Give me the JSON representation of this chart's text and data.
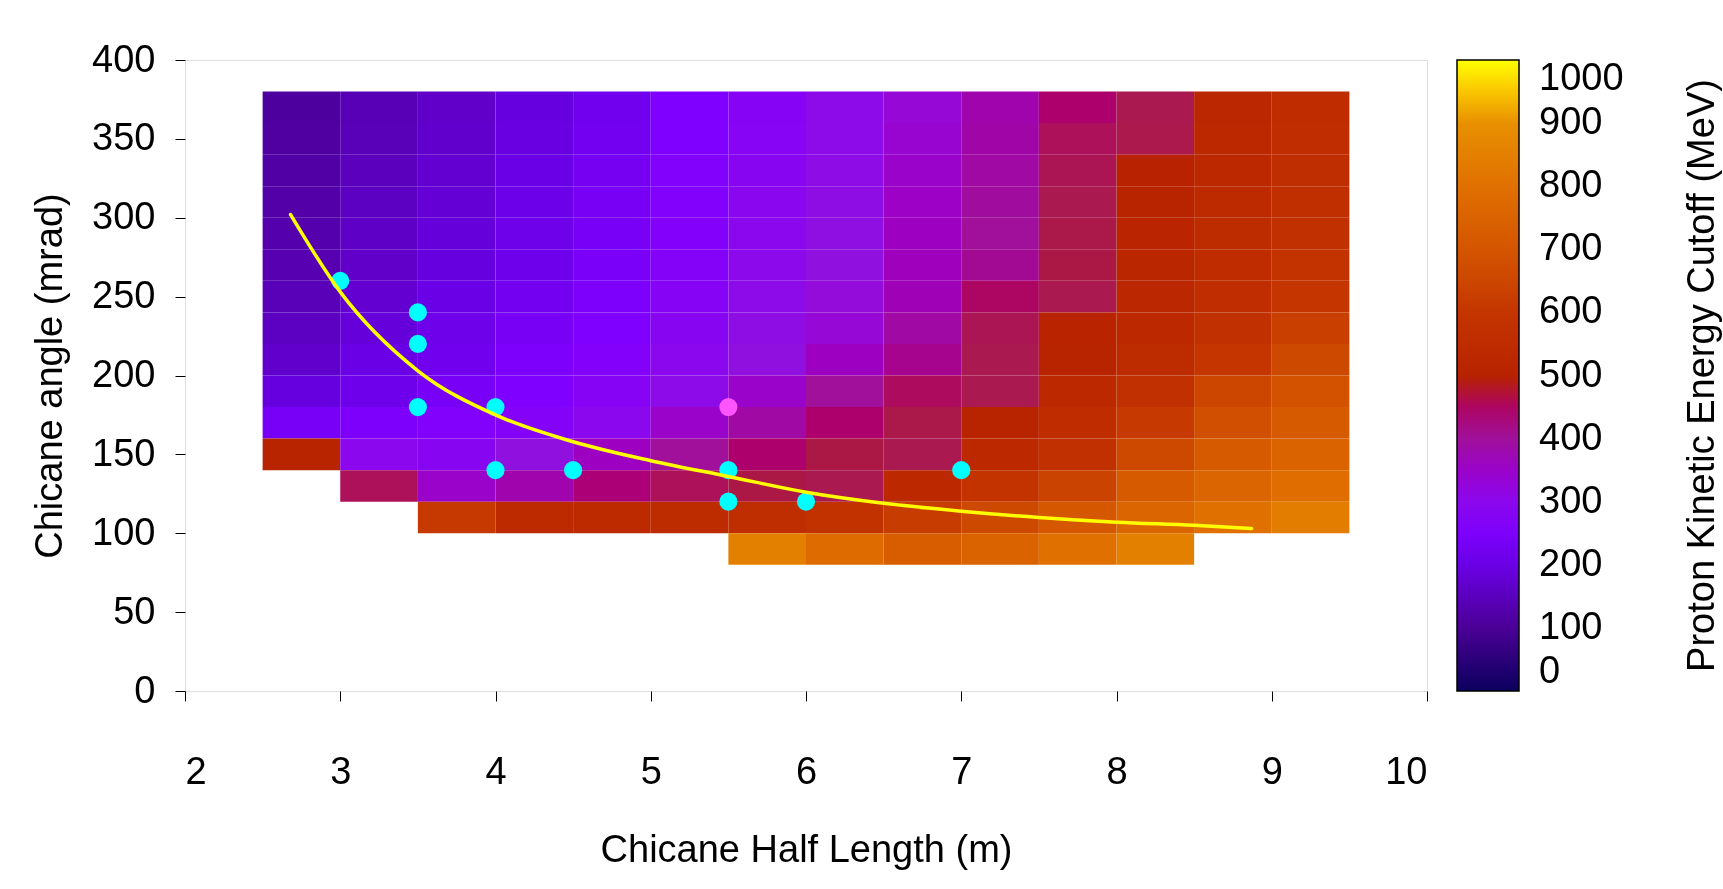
{
  "chart_data": {
    "type": "heatmap",
    "xlabel": "Chicane Half Length (m)",
    "ylabel": "Chicane angle (mrad)",
    "clabel": "Proton Kinetic Energy Cutoff (MeV)",
    "x": [
      2.75,
      3.25,
      3.75,
      4.25,
      4.75,
      5.25,
      5.75,
      6.25,
      6.75,
      7.25,
      7.75,
      8.25,
      8.75,
      9.25
    ],
    "y": [
      370,
      350,
      330,
      310,
      290,
      270,
      250,
      230,
      210,
      190,
      170,
      150,
      130,
      110,
      90
    ],
    "cells": [
      [
        110,
        140,
        165,
        190,
        220,
        260,
        280,
        310,
        340,
        380,
        440,
        470,
        525,
        550
      ],
      [
        115,
        145,
        170,
        195,
        225,
        260,
        285,
        310,
        345,
        385,
        460,
        473,
        530,
        555
      ],
      [
        120,
        150,
        175,
        200,
        230,
        265,
        290,
        315,
        350,
        390,
        465,
        500,
        535,
        560
      ],
      [
        125,
        155,
        180,
        205,
        235,
        265,
        295,
        320,
        355,
        395,
        470,
        510,
        540,
        565
      ],
      [
        130,
        160,
        185,
        210,
        240,
        270,
        300,
        325,
        360,
        400,
        475,
        515,
        545,
        570
      ],
      [
        135,
        165,
        190,
        215,
        245,
        275,
        305,
        330,
        365,
        405,
        480,
        520,
        550,
        590
      ],
      [
        145,
        175,
        200,
        225,
        250,
        280,
        310,
        335,
        370,
        450,
        470,
        525,
        555,
        600
      ],
      [
        155,
        185,
        210,
        235,
        260,
        290,
        320,
        340,
        390,
        465,
        505,
        530,
        570,
        630
      ],
      [
        170,
        200,
        220,
        250,
        270,
        300,
        330,
        360,
        410,
        470,
        510,
        545,
        600,
        660
      ],
      [
        190,
        215,
        240,
        260,
        280,
        310,
        350,
        400,
        455,
        470,
        530,
        570,
        650,
        690
      ],
      [
        240,
        250,
        265,
        275,
        300,
        350,
        390,
        440,
        475,
        510,
        550,
        610,
        680,
        720
      ],
      [
        510,
        300,
        290,
        330,
        360,
        400,
        440,
        480,
        470,
        530,
        570,
        660,
        720,
        750
      ],
      [
        null,
        460,
        350,
        380,
        430,
        460,
        480,
        470,
        530,
        590,
        640,
        720,
        760,
        790
      ],
      [
        null,
        null,
        610,
        540,
        540,
        545,
        560,
        580,
        620,
        660,
        710,
        760,
        800,
        840
      ],
      [
        null,
        null,
        null,
        null,
        null,
        null,
        850,
        780,
        730,
        750,
        800,
        850,
        null,
        null
      ]
    ],
    "clim": [
      0,
      1000
    ],
    "cticks": [
      0,
      100,
      200,
      300,
      400,
      500,
      600,
      700,
      800,
      900,
      1000
    ],
    "xlim": [
      2,
      10
    ],
    "xticks": [
      2,
      3,
      4,
      5,
      6,
      7,
      8,
      9,
      10
    ],
    "ylim": [
      0,
      400
    ],
    "yticks": [
      0,
      50,
      100,
      150,
      200,
      250,
      300,
      350,
      400
    ],
    "grid": false,
    "series": [
      {
        "type": "scatter",
        "marker": "circle",
        "color": "#00ffff",
        "x": [
          3,
          3.5,
          3.5,
          3.5,
          4,
          4,
          4.5,
          5.5,
          5.5,
          6,
          7
        ],
        "values": [
          260,
          240,
          220,
          180,
          180,
          140,
          140,
          140,
          120,
          120,
          140
        ]
      },
      {
        "type": "scatter",
        "marker": "circle",
        "color": "#ff55ff",
        "x": [
          5.5
        ],
        "values": [
          180
        ]
      },
      {
        "type": "line",
        "color": "#ffff00",
        "line_style": "solid",
        "x": [
          2.68,
          3,
          3.5,
          4,
          4.5,
          5,
          5.5,
          6,
          6.5,
          7,
          7.5,
          8,
          8.5,
          8.87
        ],
        "values": [
          302,
          253,
          203,
          175,
          158,
          146,
          136,
          126,
          119,
          114,
          110,
          107,
          105,
          103
        ]
      }
    ]
  }
}
